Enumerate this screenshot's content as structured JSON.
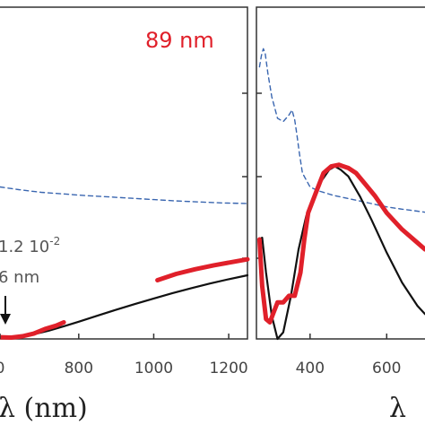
{
  "chart_data": [
    {
      "type": "line",
      "panel": "left",
      "size_label": "89 nm",
      "annotation_line1": "1.2 10",
      "annotation_exp": "-2",
      "annotation_line2": "6 nm",
      "xlabel": "λ (nm)",
      "x_ticks": [
        "0",
        "800",
        "1000",
        "1200"
      ],
      "xlim": [
        590,
        1250
      ],
      "ylim": [
        0,
        1
      ],
      "colors": {
        "red": "#e0202a",
        "black": "#111111",
        "blue": "#3a66b0"
      },
      "series": [
        {
          "style": "blue-dashed",
          "x": [
            590,
            640,
            700,
            760,
            820,
            880,
            940,
            1000,
            1060,
            1120,
            1180,
            1250
          ],
          "y": [
            0.458,
            0.45,
            0.442,
            0.437,
            0.432,
            0.428,
            0.424,
            0.42,
            0.416,
            0.413,
            0.41,
            0.408
          ]
        },
        {
          "style": "black-solid",
          "x": [
            590,
            620,
            650,
            680,
            720,
            760,
            800,
            850,
            900,
            950,
            1000,
            1050,
            1100,
            1150,
            1200,
            1250
          ],
          "y": [
            0.005,
            0.005,
            0.008,
            0.014,
            0.025,
            0.038,
            0.052,
            0.07,
            0.088,
            0.105,
            0.122,
            0.138,
            0.153,
            0.167,
            0.18,
            0.192
          ]
        },
        {
          "style": "red-thick",
          "x": [
            590,
            620,
            650,
            680,
            710,
            740,
            760
          ],
          "y": [
            0.005,
            0.004,
            0.008,
            0.016,
            0.03,
            0.04,
            0.05
          ]
        },
        {
          "style": "red-thick",
          "x": [
            1010,
            1060,
            1110,
            1160,
            1210,
            1250
          ],
          "y": [
            0.177,
            0.196,
            0.21,
            0.222,
            0.232,
            0.24
          ]
        }
      ]
    },
    {
      "type": "line",
      "panel": "right",
      "xlabel": "λ",
      "x_ticks": [
        "400",
        "600"
      ],
      "xlim": [
        260,
        700
      ],
      "ylim": [
        0,
        1
      ],
      "series": [
        {
          "style": "blue-dashed",
          "x": [
            268,
            273,
            278,
            283,
            290,
            300,
            315,
            330,
            345,
            353,
            360,
            365,
            372,
            380,
            400,
            420,
            440,
            460,
            480,
            500,
            520,
            540,
            560,
            580,
            600,
            640,
            680,
            700
          ],
          "y": [
            0.82,
            0.855,
            0.875,
            0.86,
            0.8,
            0.73,
            0.665,
            0.655,
            0.675,
            0.69,
            0.66,
            0.62,
            0.56,
            0.5,
            0.458,
            0.447,
            0.44,
            0.433,
            0.428,
            0.423,
            0.418,
            0.413,
            0.408,
            0.403,
            0.398,
            0.391,
            0.385,
            0.382
          ]
        },
        {
          "style": "black-solid",
          "x": [
            268,
            275,
            285,
            300,
            315,
            330,
            350,
            370,
            390,
            420,
            450,
            465,
            480,
            500,
            530,
            560,
            600,
            640,
            680,
            700
          ],
          "y": [
            0.3,
            0.305,
            0.2,
            0.07,
            0.0,
            0.02,
            0.13,
            0.27,
            0.37,
            0.46,
            0.51,
            0.52,
            0.51,
            0.49,
            0.43,
            0.36,
            0.26,
            0.17,
            0.1,
            0.075
          ]
        },
        {
          "style": "red-thick",
          "x": [
            268,
            275,
            285,
            295,
            305,
            315,
            330,
            345,
            360,
            375,
            385,
            395,
            415,
            435,
            455,
            475,
            500,
            520,
            545,
            570,
            600,
            640,
            680,
            700
          ],
          "y": [
            0.3,
            0.16,
            0.06,
            0.05,
            0.08,
            0.11,
            0.11,
            0.13,
            0.13,
            0.2,
            0.3,
            0.38,
            0.44,
            0.5,
            0.52,
            0.525,
            0.515,
            0.5,
            0.465,
            0.43,
            0.38,
            0.33,
            0.29,
            0.27
          ]
        }
      ]
    }
  ]
}
